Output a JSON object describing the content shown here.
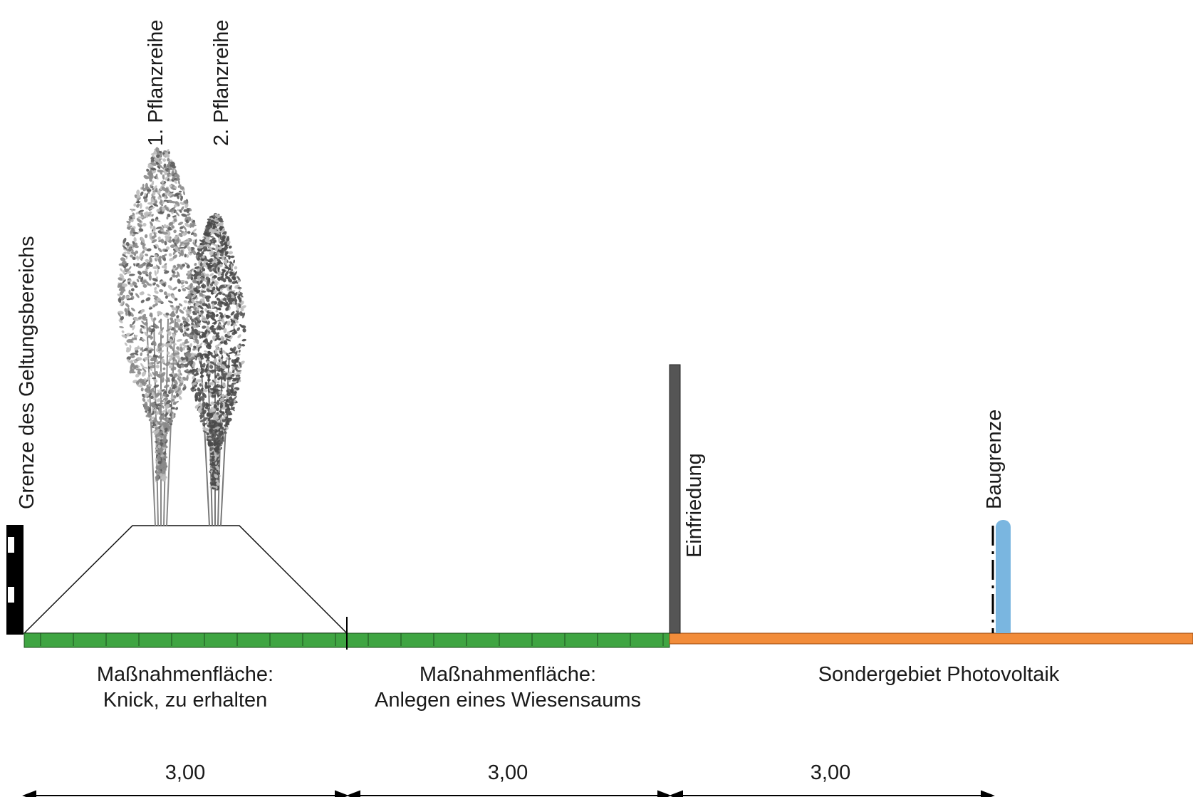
{
  "labels": {
    "grenze": "Grenze des Geltungsbereichs",
    "reihe1": "1. Pflanzreihe",
    "reihe2": "2. Pflanzreihe",
    "einfriedung": "Einfriedung",
    "baugrenze": "Baugrenze"
  },
  "zones": [
    {
      "line1": "Maßnahmenfläche:",
      "line2": "Knick, zu erhalten"
    },
    {
      "line1": "Maßnahmenfläche:",
      "line2": "Anlegen eines Wiesensaums"
    },
    {
      "line1": "Sondergebiet Photovoltaik",
      "line2": ""
    }
  ],
  "dimensions": [
    "3,00",
    "3,00",
    "3,00"
  ],
  "colors": {
    "meadow": "#3fa542",
    "photovoltaic": "#f28c3a",
    "fence": "#555555",
    "baugrenze": "#7ab6e0",
    "tree_light": "#8a8a8a",
    "tree_dark": "#4a4a4a"
  }
}
